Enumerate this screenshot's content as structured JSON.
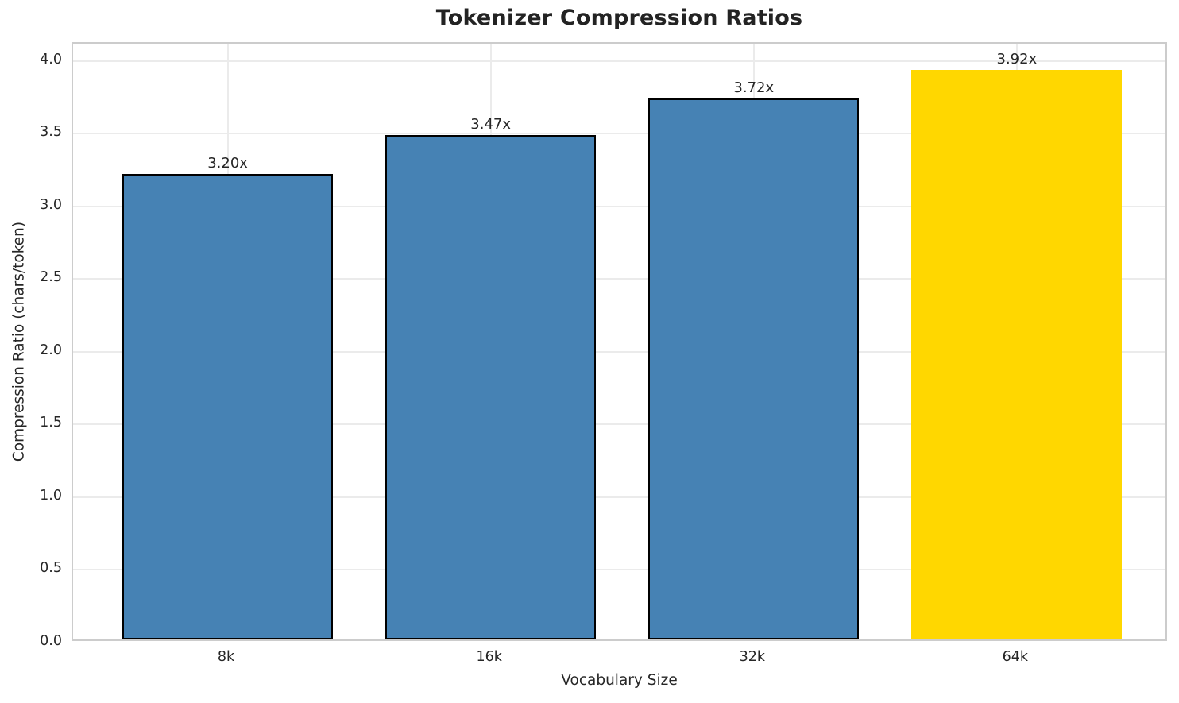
{
  "chart_data": {
    "type": "bar",
    "title": "Tokenizer Compression Ratios",
    "xlabel": "Vocabulary Size",
    "ylabel": "Compression Ratio (chars/token)",
    "categories": [
      "8k",
      "16k",
      "32k",
      "64k"
    ],
    "values": [
      3.2,
      3.47,
      3.72,
      3.92
    ],
    "bar_labels": [
      "3.20x",
      "3.47x",
      "3.72x",
      "3.92x"
    ],
    "bar_colors": [
      "#4682B4",
      "#4682B4",
      "#4682B4",
      "#FFD700"
    ],
    "bar_edge_colors": [
      "#000000",
      "#000000",
      "#000000",
      "none"
    ],
    "y_ticks": [
      0.0,
      0.5,
      1.0,
      1.5,
      2.0,
      2.5,
      3.0,
      3.5,
      4.0
    ],
    "y_tick_labels": [
      "0.0",
      "0.5",
      "1.0",
      "1.5",
      "2.0",
      "2.5",
      "3.0",
      "3.5",
      "4.0"
    ],
    "ylim": [
      0,
      4.12
    ],
    "grid": true,
    "legend": "none",
    "background_color": "#ffffff",
    "text_color": "#262626",
    "grid_color": "#ebebeb",
    "spine_color": "#cccccc"
  }
}
